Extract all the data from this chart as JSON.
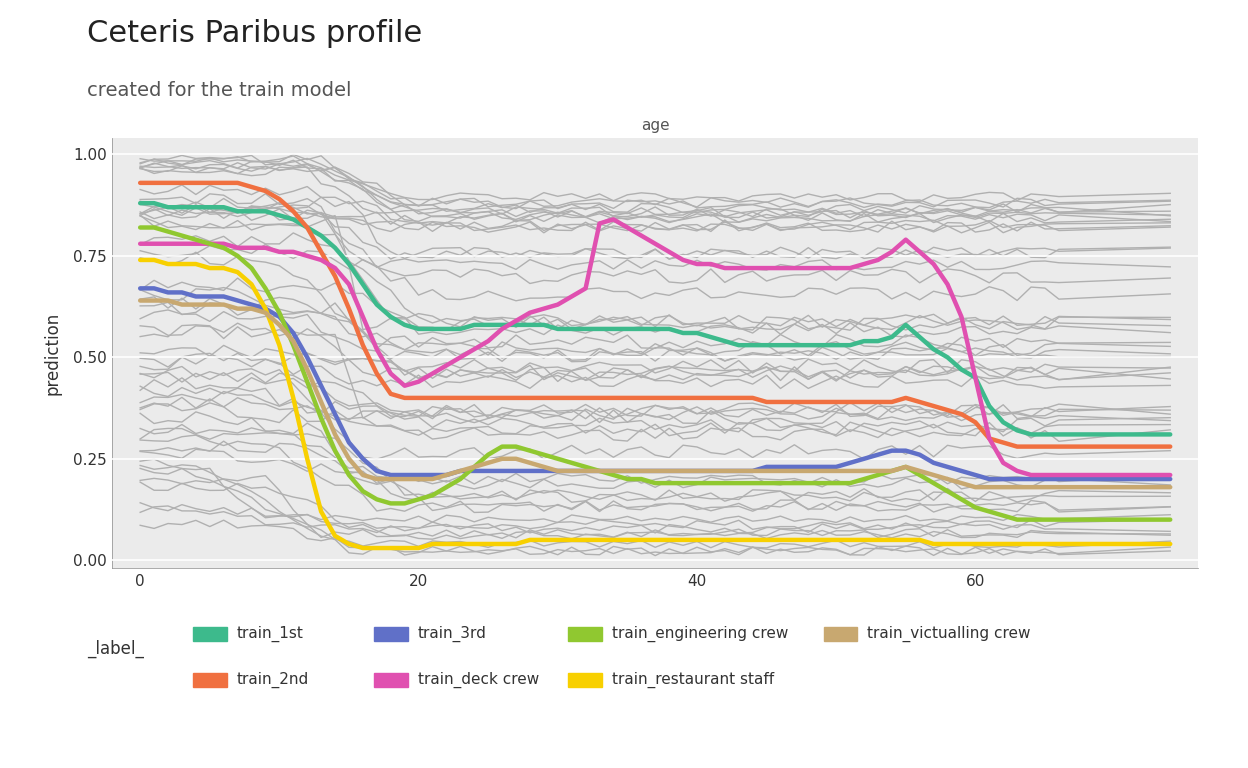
{
  "title": "Ceteris Paribus profile",
  "subtitle": "created for the train model",
  "xlabel_above": "age",
  "ylabel": "prediction",
  "background_color": "#ffffff",
  "plot_bg_color": "#ebebeb",
  "xlim": [
    -2,
    76
  ],
  "ylim": [
    -0.02,
    1.04
  ],
  "xticks": [
    0,
    20,
    40,
    60
  ],
  "yticks": [
    0.0,
    0.25,
    0.5,
    0.75,
    1.0
  ],
  "classes": {
    "train_1st": {
      "color": "#3dba8c",
      "lw": 3.2
    },
    "train_2nd": {
      "color": "#f07040",
      "lw": 3.2
    },
    "train_3rd": {
      "color": "#6070c8",
      "lw": 3.2
    },
    "train_deck crew": {
      "color": "#e050b0",
      "lw": 3.2
    },
    "train_engineering crew": {
      "color": "#90c830",
      "lw": 3.2
    },
    "train_restaurant staff": {
      "color": "#f8d000",
      "lw": 3.2
    },
    "train_victualling crew": {
      "color": "#c8a870",
      "lw": 3.2
    }
  },
  "gray_color": "#b0b0b0",
  "gray_lw": 1.0,
  "legend_title": "_label_"
}
